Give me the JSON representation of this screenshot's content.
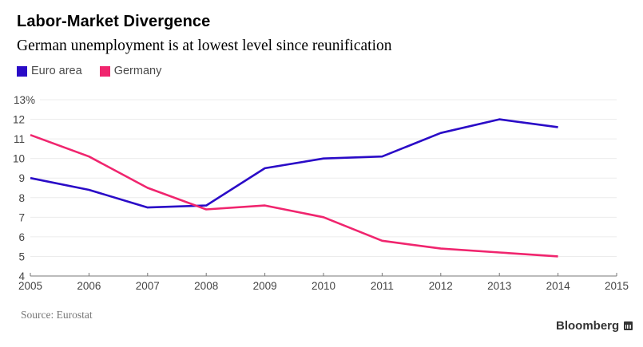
{
  "header": {
    "title": "Labor-Market Divergence",
    "subtitle": "German unemployment is at lowest level since reunification"
  },
  "legend": [
    {
      "label": "Euro area",
      "color": "#2a0bc7"
    },
    {
      "label": "Germany",
      "color": "#f0256e"
    }
  ],
  "footer": {
    "source": "Source: Eurostat",
    "brand": "Bloomberg"
  },
  "chart_data": {
    "type": "line",
    "title": "Labor-Market Divergence",
    "subtitle": "German unemployment is at lowest level since reunification",
    "xlabel": "",
    "ylabel": "",
    "x": [
      2005,
      2006,
      2007,
      2008,
      2009,
      2010,
      2011,
      2012,
      2013,
      2014
    ],
    "xlim": [
      2005,
      2015
    ],
    "x_ticks": [
      "2005",
      "2006",
      "2007",
      "2008",
      "2009",
      "2010",
      "2011",
      "2012",
      "2013",
      "2014",
      "2015"
    ],
    "ylim": [
      4,
      13
    ],
    "y_ticks": [
      "4",
      "5",
      "6",
      "7",
      "8",
      "9",
      "10",
      "11",
      "12",
      "13%"
    ],
    "grid": true,
    "legend_position": "top-left",
    "series": [
      {
        "name": "Euro area",
        "color": "#2a0bc7",
        "values": [
          9.0,
          8.4,
          7.5,
          7.6,
          9.5,
          10.0,
          10.1,
          11.3,
          12.0,
          11.6
        ]
      },
      {
        "name": "Germany",
        "color": "#f0256e",
        "values": [
          11.2,
          10.1,
          8.5,
          7.4,
          7.6,
          7.0,
          5.8,
          5.4,
          5.2,
          5.0
        ]
      }
    ],
    "source": "Source: Eurostat"
  }
}
